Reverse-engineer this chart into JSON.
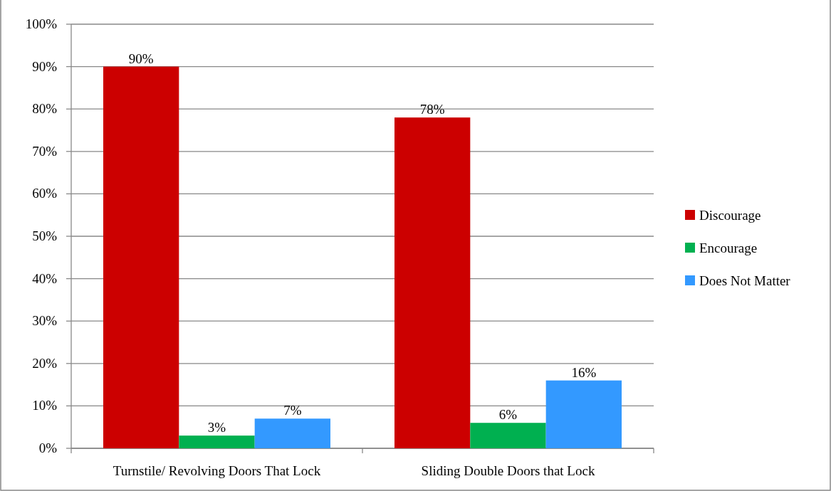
{
  "chart_data": {
    "type": "bar",
    "categories": [
      "Turnstile/ Revolving Doors That Lock",
      "Sliding Double Doors that Lock"
    ],
    "series": [
      {
        "name": "Discourage",
        "color": "#cc0000",
        "values": [
          90,
          78
        ],
        "value_labels": [
          "90%",
          "78%"
        ]
      },
      {
        "name": "Encourage",
        "color": "#00b050",
        "values": [
          3,
          6
        ],
        "value_labels": [
          "3%",
          "6%"
        ]
      },
      {
        "name": "Does Not Matter",
        "color": "#3399ff",
        "values": [
          7,
          16
        ],
        "value_labels": [
          "7%",
          "16%"
        ]
      }
    ],
    "ylim": [
      0,
      100
    ],
    "yticks": [
      {
        "value": 0,
        "label": "0%"
      },
      {
        "value": 10,
        "label": "10%"
      },
      {
        "value": 20,
        "label": "20%"
      },
      {
        "value": 30,
        "label": "30%"
      },
      {
        "value": 40,
        "label": "40%"
      },
      {
        "value": 50,
        "label": "50%"
      },
      {
        "value": 60,
        "label": "60%"
      },
      {
        "value": 70,
        "label": "70%"
      },
      {
        "value": 80,
        "label": "80%"
      },
      {
        "value": 90,
        "label": "90%"
      },
      {
        "value": 100,
        "label": "100%"
      }
    ],
    "grid": "y",
    "legend": "right"
  }
}
